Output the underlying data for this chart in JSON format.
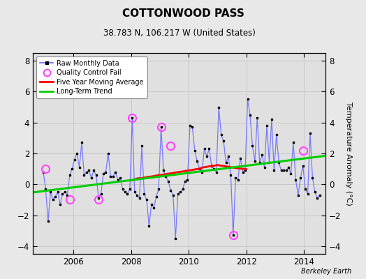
{
  "title": "COTTONWOOD PASS",
  "subtitle": "38.783 N, 106.217 W (United States)",
  "ylabel": "Temperature Anomaly (°C)",
  "credit": "Berkeley Earth",
  "ylim": [
    -4.5,
    8.5
  ],
  "xlim": [
    2004.6,
    2014.75
  ],
  "xticks": [
    2006,
    2008,
    2010,
    2012,
    2014
  ],
  "yticks": [
    -4,
    -2,
    0,
    2,
    4,
    6,
    8
  ],
  "bg_color": "#e8e8e8",
  "plot_bg_color": "#e0e0e0",
  "raw_x": [
    2004.958,
    2005.042,
    2005.125,
    2005.208,
    2005.292,
    2005.375,
    2005.458,
    2005.542,
    2005.625,
    2005.708,
    2005.792,
    2005.875,
    2005.958,
    2006.042,
    2006.125,
    2006.208,
    2006.292,
    2006.375,
    2006.458,
    2006.542,
    2006.625,
    2006.708,
    2006.792,
    2006.875,
    2006.958,
    2007.042,
    2007.125,
    2007.208,
    2007.292,
    2007.375,
    2007.458,
    2007.542,
    2007.625,
    2007.708,
    2007.792,
    2007.875,
    2007.958,
    2008.042,
    2008.125,
    2008.208,
    2008.292,
    2008.375,
    2008.458,
    2008.542,
    2008.625,
    2008.708,
    2008.792,
    2008.875,
    2008.958,
    2009.042,
    2009.125,
    2009.208,
    2009.292,
    2009.375,
    2009.458,
    2009.542,
    2009.625,
    2009.708,
    2009.792,
    2009.875,
    2009.958,
    2010.042,
    2010.125,
    2010.208,
    2010.292,
    2010.375,
    2010.458,
    2010.542,
    2010.625,
    2010.708,
    2010.792,
    2010.875,
    2010.958,
    2011.042,
    2011.125,
    2011.208,
    2011.292,
    2011.375,
    2011.458,
    2011.542,
    2011.625,
    2011.708,
    2011.792,
    2011.875,
    2011.958,
    2012.042,
    2012.125,
    2012.208,
    2012.292,
    2012.375,
    2012.458,
    2012.542,
    2012.625,
    2012.708,
    2012.792,
    2012.875,
    2012.958,
    2013.042,
    2013.125,
    2013.208,
    2013.292,
    2013.375,
    2013.458,
    2013.542,
    2013.625,
    2013.708,
    2013.792,
    2013.875,
    2013.958,
    2014.042,
    2014.125,
    2014.208,
    2014.292,
    2014.375,
    2014.458,
    2014.542
  ],
  "raw_y": [
    0.8,
    -0.3,
    -2.4,
    -0.5,
    -1.0,
    -0.8,
    -0.5,
    -1.3,
    -0.6,
    -0.5,
    -0.7,
    0.6,
    1.0,
    1.6,
    2.0,
    1.1,
    2.7,
    0.6,
    0.8,
    0.9,
    0.4,
    0.9,
    0.6,
    -0.9,
    -0.6,
    0.7,
    0.8,
    2.0,
    0.5,
    0.5,
    0.8,
    0.3,
    0.4,
    -0.3,
    -0.5,
    -0.6,
    -0.3,
    4.3,
    -0.5,
    -0.7,
    -0.9,
    2.5,
    -0.6,
    -1.0,
    -2.7,
    -1.3,
    -1.5,
    -0.8,
    -0.3,
    3.7,
    0.9,
    0.5,
    0.2,
    -0.4,
    -0.7,
    -3.5,
    -0.6,
    -0.5,
    -0.3,
    0.2,
    0.3,
    3.8,
    3.7,
    2.2,
    1.5,
    1.0,
    0.8,
    2.3,
    1.8,
    2.3,
    1.2,
    1.0,
    0.8,
    5.0,
    3.2,
    2.8,
    1.4,
    1.8,
    0.6,
    -3.3,
    0.4,
    0.3,
    1.7,
    0.8,
    0.9,
    5.5,
    4.5,
    2.5,
    1.5,
    4.3,
    1.4,
    1.9,
    1.1,
    3.8,
    1.4,
    4.2,
    0.9,
    3.2,
    1.4,
    0.9,
    0.9,
    0.9,
    1.1,
    0.7,
    2.7,
    0.3,
    -0.7,
    0.4,
    1.2,
    -0.3,
    -0.6,
    3.3,
    0.4,
    -0.5,
    -0.9,
    -0.7
  ],
  "qc_fail_x": [
    2005.042,
    2005.875,
    2006.875,
    2008.042,
    2009.042,
    2009.375,
    2011.542,
    2013.958
  ],
  "qc_fail_y": [
    1.0,
    -1.0,
    -1.0,
    4.3,
    3.7,
    2.5,
    -3.3,
    2.2
  ],
  "moving_avg_x": [
    2008.0,
    2008.083,
    2008.167,
    2008.25,
    2008.333,
    2008.417,
    2008.5,
    2008.583,
    2008.667,
    2008.75,
    2008.833,
    2008.917,
    2009.0,
    2009.083,
    2009.167,
    2009.25,
    2009.333,
    2009.417,
    2009.5,
    2009.583,
    2009.667,
    2009.75,
    2009.833,
    2009.917,
    2010.0,
    2010.083,
    2010.167,
    2010.25,
    2010.333,
    2010.417,
    2010.5,
    2010.583,
    2010.667,
    2010.75,
    2010.833,
    2010.917,
    2011.0,
    2011.083,
    2011.167,
    2011.25,
    2011.333,
    2011.417,
    2011.5,
    2011.583,
    2011.667,
    2011.75,
    2011.833,
    2011.917,
    2012.0
  ],
  "moving_avg_y": [
    0.25,
    0.3,
    0.35,
    0.4,
    0.38,
    0.42,
    0.45,
    0.48,
    0.5,
    0.52,
    0.55,
    0.58,
    0.6,
    0.62,
    0.65,
    0.68,
    0.7,
    0.72,
    0.75,
    0.78,
    0.8,
    0.82,
    0.85,
    0.88,
    0.9,
    0.92,
    0.95,
    0.98,
    1.0,
    1.05,
    1.1,
    1.12,
    1.15,
    1.18,
    1.2,
    1.22,
    1.25,
    1.22,
    1.2,
    1.18,
    1.15,
    1.12,
    1.1,
    1.08,
    1.05,
    1.03,
    1.01,
    1.0,
    0.98
  ],
  "trend_x": [
    2004.6,
    2014.75
  ],
  "trend_y": [
    -0.52,
    1.85
  ],
  "raw_line_color": "#6666ff",
  "raw_marker_color": "#000000",
  "qc_marker_color": "#ff44ff",
  "moving_avg_color": "#ff0000",
  "trend_color": "#00cc00",
  "grid_color": "#c8c8c8"
}
